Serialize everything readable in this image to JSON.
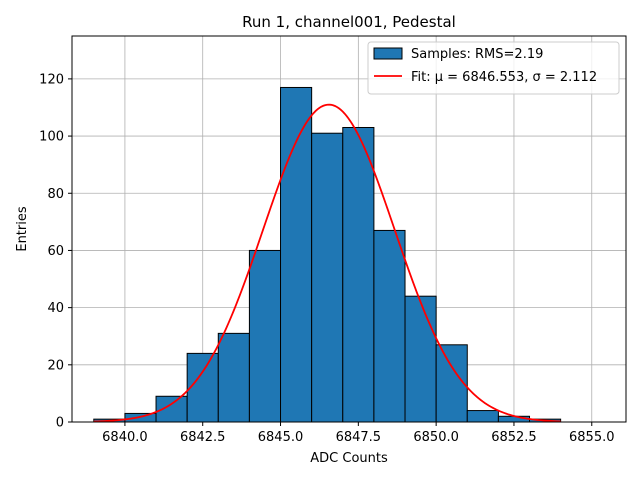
{
  "chart_data": {
    "type": "bar",
    "title": "Run 1, channel001, Pedestal",
    "xlabel": "ADC Counts",
    "ylabel": "Entries",
    "xlim": [
      6838.3,
      6856.1
    ],
    "ylim": [
      0,
      135
    ],
    "grid": true,
    "x_ticks": [
      6840.0,
      6842.5,
      6845.0,
      6847.5,
      6850.0,
      6852.5,
      6855.0
    ],
    "x_tick_labels": [
      "6840.0",
      "6842.5",
      "6845.0",
      "6847.5",
      "6850.0",
      "6852.5",
      "6855.0"
    ],
    "y_ticks": [
      0,
      20,
      40,
      60,
      80,
      100,
      120
    ],
    "y_tick_labels": [
      "0",
      "20",
      "40",
      "60",
      "80",
      "100",
      "120"
    ],
    "bin_edges": [
      6839,
      6840,
      6841,
      6842,
      6843,
      6844,
      6845,
      6846,
      6847,
      6848,
      6849,
      6850,
      6851,
      6852,
      6853,
      6854
    ],
    "bin_counts": [
      1,
      3,
      9,
      24,
      31,
      60,
      117,
      101,
      103,
      67,
      44,
      27,
      4,
      2,
      1
    ],
    "fit": {
      "type": "gaussian",
      "mu": 6846.553,
      "sigma": 2.112,
      "amplitude": 111,
      "x_range": [
        6839,
        6854
      ]
    },
    "legend": {
      "position": "top-right",
      "entries": [
        {
          "name": "Samples: RMS=2.19",
          "kind": "patch",
          "color": "#1f77b4"
        },
        {
          "name": "Fit: μ = 6846.553, σ = 2.112",
          "kind": "line",
          "color": "#ff0000"
        }
      ]
    },
    "colors": {
      "bars": "#1f77b4",
      "bar_edge": "#000000",
      "fit": "#ff0000",
      "grid": "#b0b0b0"
    }
  }
}
